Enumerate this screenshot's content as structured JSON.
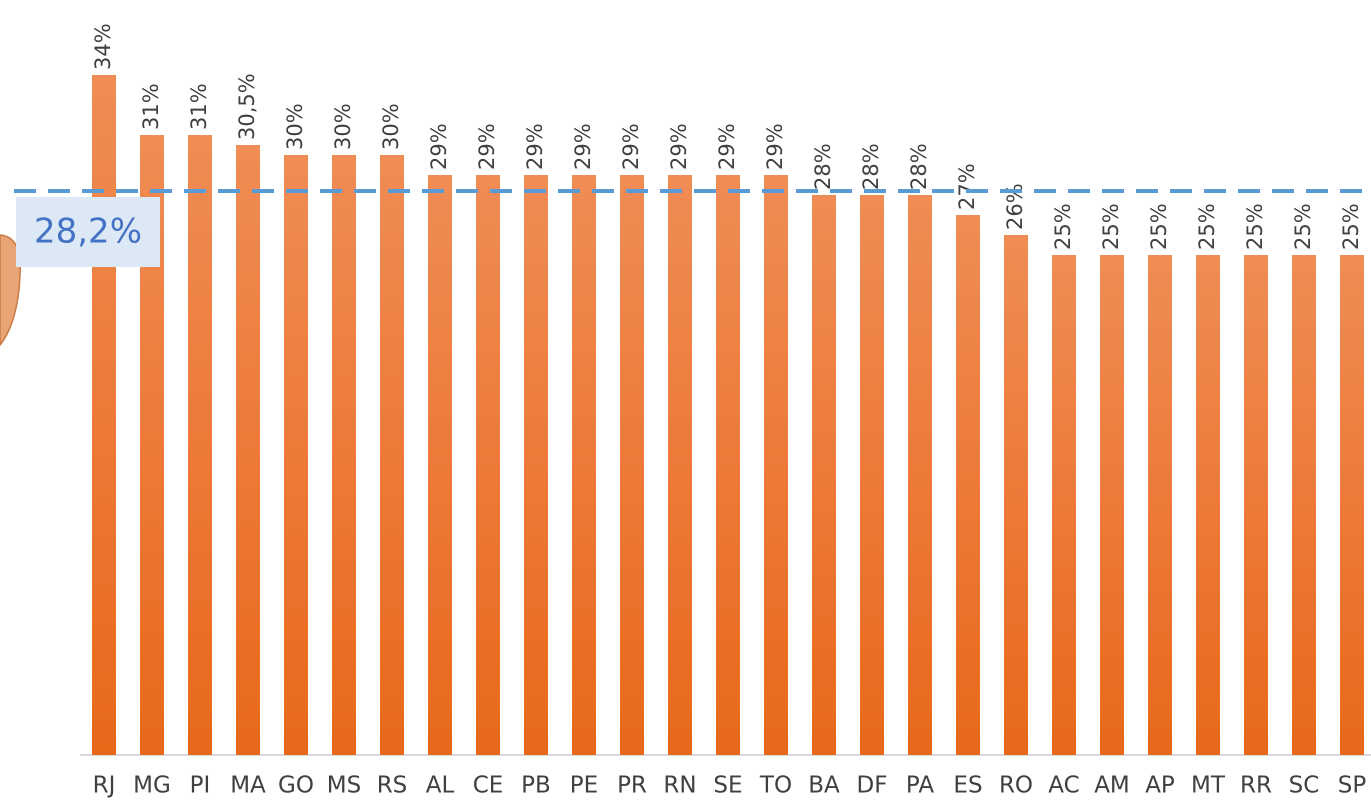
{
  "chart_data": {
    "type": "bar",
    "categories": [
      "RJ",
      "MG",
      "PI",
      "MA",
      "GO",
      "MS",
      "RS",
      "AL",
      "CE",
      "PB",
      "PE",
      "PR",
      "RN",
      "SE",
      "TO",
      "BA",
      "DF",
      "PA",
      "ES",
      "RO",
      "AC",
      "AM",
      "AP",
      "MT",
      "RR",
      "SC",
      "SP"
    ],
    "values": [
      34,
      31,
      31,
      30.5,
      30,
      30,
      30,
      29,
      29,
      29,
      29,
      29,
      29,
      29,
      29,
      28,
      28,
      28,
      27,
      26,
      25,
      25,
      25,
      25,
      25,
      25,
      25
    ],
    "value_labels": [
      "34%",
      "31%",
      "31%",
      "30,5%",
      "30%",
      "30%",
      "30%",
      "29%",
      "29%",
      "29%",
      "29%",
      "29%",
      "29%",
      "29%",
      "29%",
      "28%",
      "28%",
      "28%",
      "27%",
      "26%",
      "25%",
      "25%",
      "25%",
      "25%",
      "25%",
      "25%",
      "25%"
    ],
    "color": "#ee7d31",
    "ylim": [
      0,
      37.75
    ],
    "reference_line": {
      "value": 28.2,
      "label": "28,2%",
      "color": "#5b9bd5"
    }
  }
}
